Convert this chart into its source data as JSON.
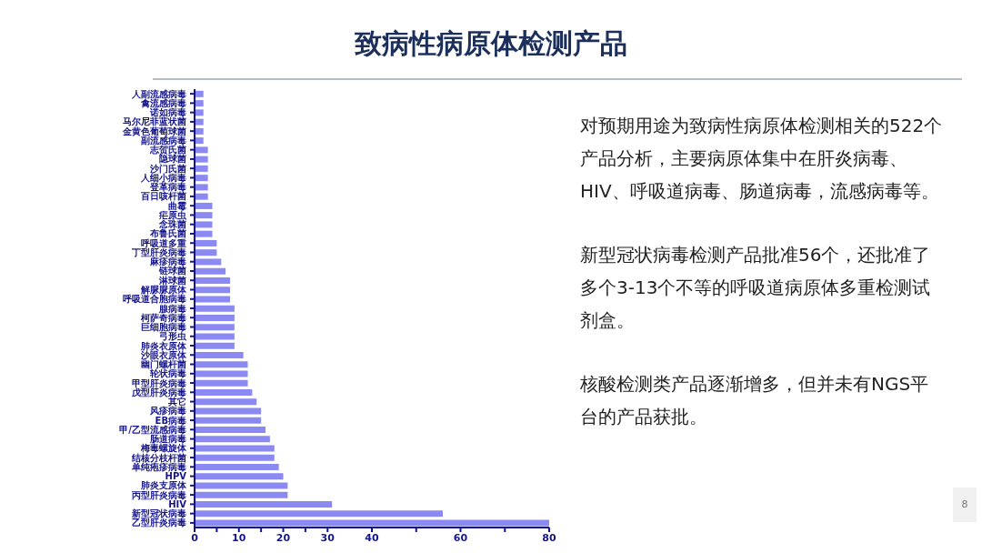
{
  "chart_data": {
    "type": "bar",
    "orientation": "horizontal",
    "title": "致病性病原体检测产品",
    "categories": [
      "人副流感病毒",
      "禽流感病毒",
      "诺如病毒",
      "马尔尼菲蓝状菌",
      "金黄色葡萄球菌",
      "副流感病毒",
      "志贺氏菌",
      "隐球菌",
      "沙门氏菌",
      "人细小病毒",
      "登革病毒",
      "百日咳杆菌",
      "曲霉",
      "疟原虫",
      "念珠菌",
      "布鲁氏菌",
      "呼吸道多重",
      "丁型肝炎病毒",
      "麻疹病毒",
      "链球菌",
      "淋球菌",
      "解脲脲原体",
      "呼吸道合胞病毒",
      "腺病毒",
      "柯萨奇病毒",
      "巨细胞病毒",
      "弓形虫",
      "肺炎衣原体",
      "沙眼衣原体",
      "幽门螺杆菌",
      "轮状病毒",
      "甲型肝炎病毒",
      "戊型肝炎病毒",
      "其它",
      "风疹病毒",
      "EB病毒",
      "甲/乙型流感病毒",
      "肠道病毒",
      "梅毒螺旋体",
      "结核分枝杆菌",
      "单纯疱疹病毒",
      "HPV",
      "肺炎支原体",
      "丙型肝炎病毒",
      "HIV",
      "新型冠状病毒",
      "乙型肝炎病毒"
    ],
    "values": [
      2,
      2,
      2,
      2,
      2,
      2,
      3,
      3,
      3,
      3,
      3,
      3,
      4,
      4,
      4,
      4,
      5,
      5,
      6,
      7,
      8,
      8,
      8,
      9,
      9,
      9,
      9,
      9,
      11,
      12,
      12,
      12,
      13,
      14,
      15,
      15,
      16,
      17,
      18,
      18,
      19,
      20,
      21,
      21,
      31,
      56,
      80
    ],
    "color": "#8a8af2",
    "xlim": [
      0,
      80
    ],
    "xticks": [
      0,
      {
        "value": 5,
        "label": null
      },
      10,
      {
        "value": 15,
        "label": null
      },
      20,
      {
        "value": 25,
        "label": null
      },
      30,
      40,
      {
        "value": 50,
        "label": null
      },
      60,
      {
        "value": 70,
        "label": null
      },
      80
    ],
    "grid": false,
    "legend": false,
    "annotations": [
      "对预期用途为致病性病原体检测相关的522个产品分析，主要病原体集中在肝炎病毒、HIV、呼吸道病毒、肠道病毒，流感病毒等。",
      "新型冠状病毒检测产品批准56个，还批准了多个3-13个不等的呼吸道病原体多重检测试剂盒。",
      "核酸检测类产品逐渐增多，但并未有NGS平台的产品获批。",
      "8"
    ]
  }
}
